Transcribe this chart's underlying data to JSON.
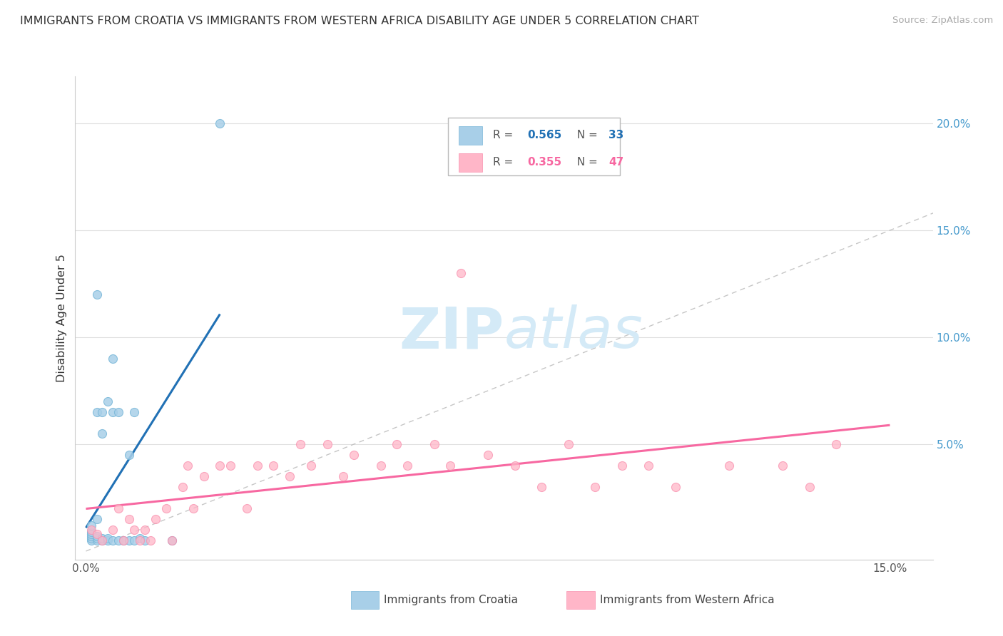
{
  "title": "IMMIGRANTS FROM CROATIA VS IMMIGRANTS FROM WESTERN AFRICA DISABILITY AGE UNDER 5 CORRELATION CHART",
  "source": "Source: ZipAtlas.com",
  "ylabel": "Disability Age Under 5",
  "xlim": [
    -0.002,
    0.158
  ],
  "ylim": [
    -0.004,
    0.222
  ],
  "croatia_color": "#a8cfe8",
  "croatia_edge": "#7ab8d9",
  "western_color": "#ffb6c8",
  "western_edge": "#f990ae",
  "croatia_line_color": "#2171b5",
  "western_line_color": "#f768a1",
  "diag_line_color": "#c0c0c0",
  "watermark_color": "#d4eaf7",
  "legend_label_croatia": "Immigrants from Croatia",
  "legend_label_western": "Immigrants from Western Africa",
  "croatia_R": "0.565",
  "croatia_N": "33",
  "western_R": "0.355",
  "western_N": "47",
  "croatia_x": [
    0.001,
    0.001,
    0.001,
    0.001,
    0.001,
    0.001,
    0.002,
    0.002,
    0.002,
    0.002,
    0.002,
    0.002,
    0.003,
    0.003,
    0.003,
    0.003,
    0.004,
    0.004,
    0.004,
    0.005,
    0.005,
    0.005,
    0.006,
    0.006,
    0.007,
    0.008,
    0.008,
    0.009,
    0.009,
    0.01,
    0.011,
    0.016,
    0.025
  ],
  "croatia_y": [
    0.005,
    0.006,
    0.007,
    0.008,
    0.009,
    0.012,
    0.005,
    0.006,
    0.007,
    0.015,
    0.065,
    0.12,
    0.005,
    0.006,
    0.055,
    0.065,
    0.005,
    0.006,
    0.07,
    0.005,
    0.065,
    0.09,
    0.005,
    0.065,
    0.005,
    0.005,
    0.045,
    0.005,
    0.065,
    0.006,
    0.005,
    0.005,
    0.2
  ],
  "western_x": [
    0.001,
    0.002,
    0.003,
    0.005,
    0.006,
    0.007,
    0.008,
    0.009,
    0.01,
    0.011,
    0.012,
    0.013,
    0.015,
    0.016,
    0.018,
    0.019,
    0.02,
    0.022,
    0.025,
    0.027,
    0.03,
    0.032,
    0.035,
    0.038,
    0.04,
    0.042,
    0.045,
    0.048,
    0.05,
    0.055,
    0.058,
    0.06,
    0.065,
    0.068,
    0.07,
    0.075,
    0.08,
    0.085,
    0.09,
    0.095,
    0.1,
    0.105,
    0.11,
    0.12,
    0.13,
    0.135,
    0.14
  ],
  "western_y": [
    0.01,
    0.008,
    0.005,
    0.01,
    0.02,
    0.005,
    0.015,
    0.01,
    0.005,
    0.01,
    0.005,
    0.015,
    0.02,
    0.005,
    0.03,
    0.04,
    0.02,
    0.035,
    0.04,
    0.04,
    0.02,
    0.04,
    0.04,
    0.035,
    0.05,
    0.04,
    0.05,
    0.035,
    0.045,
    0.04,
    0.05,
    0.04,
    0.05,
    0.04,
    0.13,
    0.045,
    0.04,
    0.03,
    0.05,
    0.03,
    0.04,
    0.04,
    0.03,
    0.04,
    0.04,
    0.03,
    0.05
  ],
  "ytick_vals": [
    0.05,
    0.1,
    0.15,
    0.2
  ],
  "ytick_labels_right": [
    "5.0%",
    "10.0%",
    "15.0%",
    "20.0%"
  ],
  "xtick_vals": [
    0.0,
    0.15
  ],
  "xtick_labels": [
    "0.0%",
    "15.0%"
  ]
}
